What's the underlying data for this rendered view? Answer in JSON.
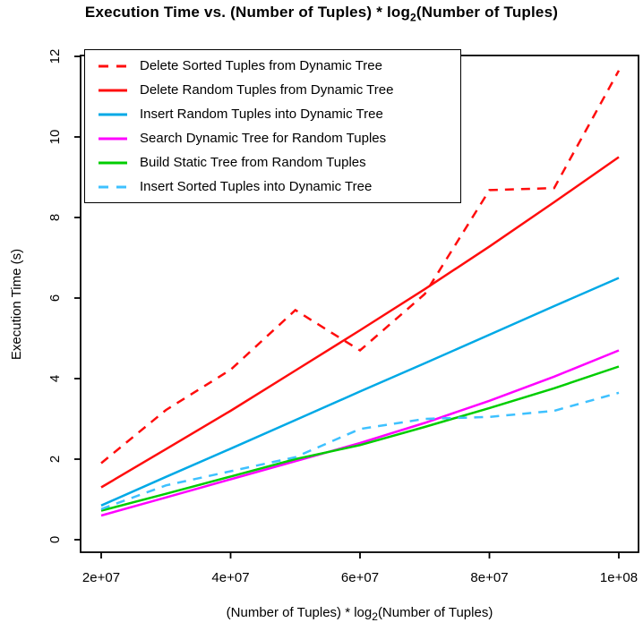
{
  "chart_data": {
    "type": "line",
    "title_parts": {
      "pre": "Execution Time vs. (Number of Tuples) * log",
      "sub": "2",
      "post": "(Number of Tuples)"
    },
    "xlabel_parts": {
      "pre": "(Number of Tuples) * log",
      "sub": "2",
      "post": "(Number of Tuples)"
    },
    "ylabel": "Execution Time (s)",
    "xlim": [
      20000000,
      100000000
    ],
    "ylim": [
      0,
      12
    ],
    "grid": false,
    "legend_position": "topleft",
    "x": [
      20000000,
      30000000,
      40000000,
      50000000,
      60000000,
      70000000,
      80000000,
      90000000,
      100000000
    ],
    "xticks": [
      {
        "label": "2e+07",
        "value": 20000000
      },
      {
        "label": "4e+07",
        "value": 40000000
      },
      {
        "label": "6e+07",
        "value": 60000000
      },
      {
        "label": "8e+07",
        "value": 80000000
      },
      {
        "label": "1e+08",
        "value": 100000000
      }
    ],
    "yticks": [
      {
        "label": "0",
        "value": 0
      },
      {
        "label": "2",
        "value": 2
      },
      {
        "label": "4",
        "value": 4
      },
      {
        "label": "6",
        "value": 6
      },
      {
        "label": "8",
        "value": 8
      },
      {
        "label": "10",
        "value": 10
      },
      {
        "label": "12",
        "value": 12
      }
    ],
    "series": [
      {
        "name": "Delete Sorted Tuples from Dynamic Tree",
        "color": "#FF0D0D",
        "style": "dashed",
        "values": [
          1.9,
          3.22,
          4.22,
          5.7,
          4.7,
          6.1,
          8.68,
          8.73,
          11.65
        ]
      },
      {
        "name": "Delete Random Tuples from Dynamic Tree",
        "color": "#FF0D0D",
        "style": "solid",
        "values": [
          1.3,
          2.25,
          3.2,
          4.2,
          5.2,
          6.22,
          7.28,
          8.38,
          9.5
        ]
      },
      {
        "name": "Insert Random Tuples into Dynamic Tree",
        "color": "#00A9E6",
        "style": "solid",
        "values": [
          0.85,
          1.56,
          2.26,
          2.97,
          3.68,
          4.38,
          5.09,
          5.8,
          6.5
        ]
      },
      {
        "name": "Search Dynamic Tree for Random Tuples",
        "color": "#FF00FF",
        "style": "solid",
        "values": [
          0.6,
          1.05,
          1.5,
          1.95,
          2.4,
          2.9,
          3.45,
          4.05,
          4.7
        ]
      },
      {
        "name": "Build Static Tree from Random Tuples",
        "color": "#00CD00",
        "style": "solid",
        "values": [
          0.72,
          1.14,
          1.57,
          2.0,
          2.35,
          2.8,
          3.27,
          3.76,
          4.3
        ]
      },
      {
        "name": "Insert Sorted Tuples into Dynamic Tree",
        "color": "#3EC1FF",
        "style": "dashed",
        "values": [
          0.76,
          1.35,
          1.7,
          2.05,
          2.75,
          3.0,
          3.05,
          3.2,
          3.65
        ]
      }
    ]
  }
}
